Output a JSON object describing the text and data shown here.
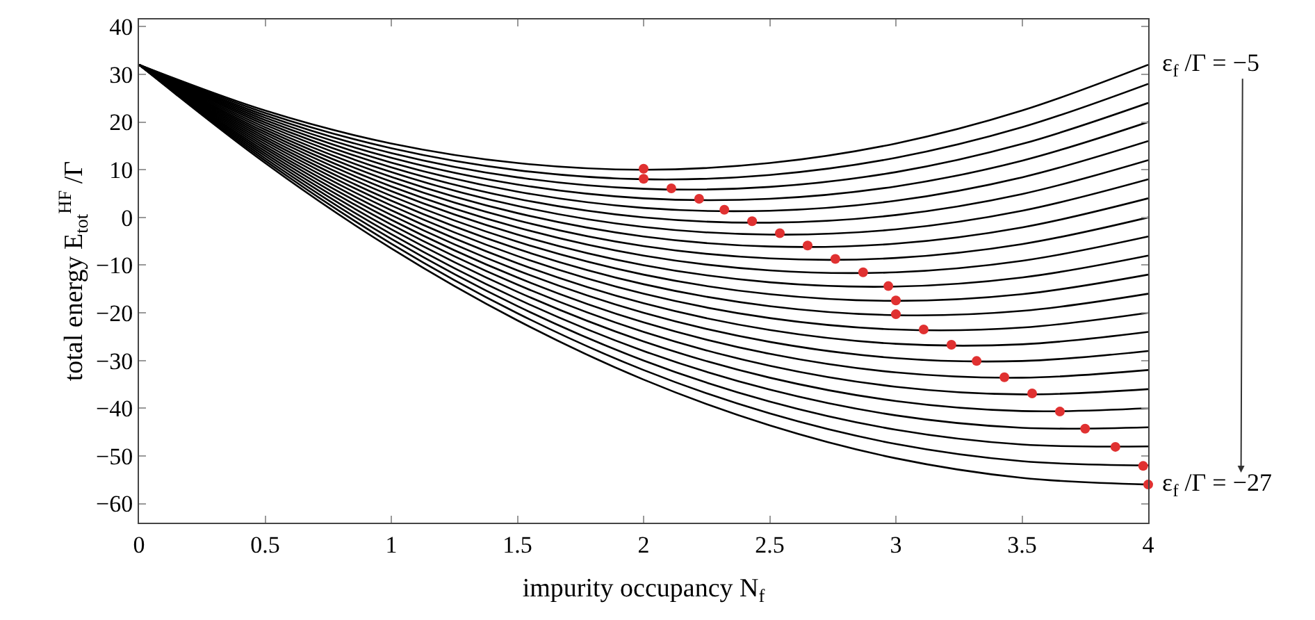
{
  "chart_data": {
    "type": "line",
    "xlabel": "impurity occupancy N$_{f}$",
    "ylabel": "total energy E$_{tot}$$^{HF}$ /Γ",
    "annotations": [
      "ε$_{f}$ /Γ = −5",
      "ε$_{f}$ /Γ = −27"
    ],
    "x": [
      0,
      0.5,
      1,
      1.5,
      2,
      2.5,
      3,
      3.5,
      4
    ],
    "xlim": [
      0,
      4
    ],
    "xticks": [
      0,
      0.5,
      1,
      1.5,
      2,
      2.5,
      3,
      3.5,
      4
    ],
    "ylim": [
      -64,
      41.5
    ],
    "yticks": [
      {
        "value": -60,
        "label": "−60"
      },
      {
        "value": -50,
        "label": "−50"
      },
      {
        "value": -40,
        "label": "−40"
      },
      {
        "value": -30,
        "label": "−30"
      },
      {
        "value": -20,
        "label": "−20"
      },
      {
        "value": -10,
        "label": "−10"
      },
      0,
      10,
      20,
      30,
      40
    ],
    "marker": "none",
    "line_style": "solid",
    "series": [
      {
        "color": "#000000",
        "values": [
          32,
          22.4,
          15.5,
          11.4,
          10,
          11.4,
          15.5,
          22.4,
          32
        ]
      },
      {
        "color": "#000000",
        "values": [
          32,
          21.9,
          14.5,
          9.9,
          8,
          8.9,
          12.5,
          18.9,
          28
        ]
      },
      {
        "color": "#000000",
        "values": [
          32,
          21.4,
          13.5,
          8.4,
          6,
          6.4,
          9.5,
          15.4,
          24
        ]
      },
      {
        "color": "#000000",
        "values": [
          32,
          20.9,
          12.5,
          6.9,
          4,
          3.9,
          6.5,
          11.9,
          20
        ]
      },
      {
        "color": "#000000",
        "values": [
          32,
          20.4,
          11.5,
          5.4,
          2,
          1.4,
          3.5,
          8.4,
          16
        ]
      },
      {
        "color": "#000000",
        "values": [
          32,
          19.9,
          10.5,
          3.9,
          0,
          -1.1,
          0.5,
          4.9,
          12
        ]
      },
      {
        "color": "#000000",
        "values": [
          32,
          19.4,
          9.5,
          2.4,
          -2,
          -3.6,
          -2.5,
          1.4,
          8
        ]
      },
      {
        "color": "#000000",
        "values": [
          32,
          18.9,
          8.5,
          0.9,
          -4,
          -6.1,
          -5.5,
          -2.1,
          4
        ]
      },
      {
        "color": "#000000",
        "values": [
          32,
          18.4,
          7.5,
          -0.6,
          -6,
          -8.6,
          -8.5,
          -5.6,
          0
        ]
      },
      {
        "color": "#000000",
        "values": [
          32,
          17.9,
          6.5,
          -2.1,
          -8,
          -11.1,
          -11.5,
          -9.1,
          -4
        ]
      },
      {
        "color": "#000000",
        "values": [
          32,
          17.4,
          5.5,
          -3.6,
          -10,
          -13.6,
          -14.5,
          -12.6,
          -8
        ]
      },
      {
        "color": "#000000",
        "values": [
          32,
          16.9,
          4.5,
          -5.1,
          -12,
          -16.1,
          -17.5,
          -16.1,
          -12
        ]
      },
      {
        "color": "#000000",
        "values": [
          32,
          16.4,
          3.5,
          -6.6,
          -14,
          -18.6,
          -20.5,
          -19.6,
          -16
        ]
      },
      {
        "color": "#000000",
        "values": [
          32,
          15.9,
          2.5,
          -8.1,
          -16,
          -21.1,
          -23.5,
          -23.1,
          -20
        ]
      },
      {
        "color": "#000000",
        "values": [
          32,
          15.4,
          1.5,
          -9.6,
          -18,
          -23.6,
          -26.5,
          -26.6,
          -24
        ]
      },
      {
        "color": "#000000",
        "values": [
          32,
          14.9,
          0.5,
          -11.1,
          -20,
          -26.1,
          -29.5,
          -30.1,
          -28
        ]
      },
      {
        "color": "#000000",
        "values": [
          32,
          14.4,
          -0.5,
          -12.6,
          -22,
          -28.6,
          -32.5,
          -33.6,
          -32
        ]
      },
      {
        "color": "#000000",
        "values": [
          32,
          13.9,
          -1.5,
          -14.1,
          -24,
          -31.1,
          -35.5,
          -37.1,
          -36
        ]
      },
      {
        "color": "#000000",
        "values": [
          32,
          13.4,
          -2.5,
          -15.6,
          -26,
          -33.6,
          -38.5,
          -40.6,
          -40
        ]
      },
      {
        "color": "#000000",
        "values": [
          32,
          12.9,
          -3.5,
          -17.1,
          -28,
          -36.1,
          -41.5,
          -44.1,
          -44
        ]
      },
      {
        "color": "#000000",
        "values": [
          32,
          12.4,
          -4.5,
          -18.6,
          -30,
          -38.6,
          -44.5,
          -47.6,
          -48
        ]
      },
      {
        "color": "#000000",
        "values": [
          32,
          11.9,
          -5.5,
          -20.1,
          -32,
          -41.1,
          -47.5,
          -51.1,
          -52
        ]
      },
      {
        "color": "#000000",
        "values": [
          32,
          11.4,
          -6.5,
          -21.6,
          -34,
          -43.6,
          -50.5,
          -54.6,
          -56
        ]
      },
      {
        "type": "scatter",
        "marker": "circle",
        "color": "#e03131",
        "x": [
          2.0,
          2.0,
          2.11,
          2.22,
          2.32,
          2.43,
          2.54,
          2.65,
          2.76,
          2.87,
          2.97,
          3.0,
          3.0,
          3.11,
          3.22,
          3.32,
          3.43,
          3.54,
          3.65,
          3.75,
          3.87,
          3.98,
          4.0
        ],
        "values": [
          10.2,
          8.1,
          6.1,
          3.9,
          1.6,
          -0.8,
          -3.3,
          -5.9,
          -8.7,
          -11.5,
          -14.4,
          -17.4,
          -20.3,
          -23.5,
          -26.7,
          -30.1,
          -33.5,
          -36.9,
          -40.7,
          -44.3,
          -48.1,
          -52.1,
          -56
        ]
      }
    ]
  }
}
